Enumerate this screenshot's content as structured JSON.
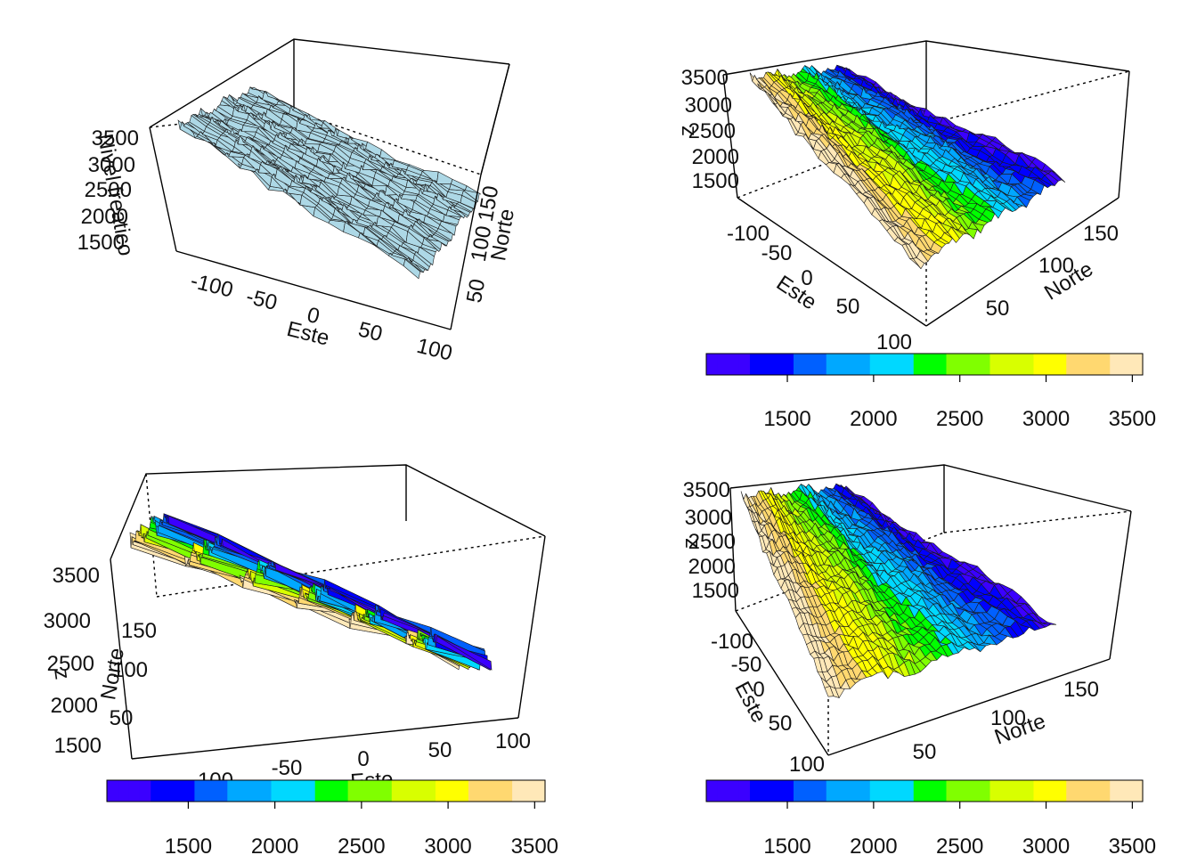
{
  "chart_data": [
    {
      "panel": "top-left",
      "type": "surface",
      "facet_color": "#add8e6",
      "xlabel": "Este",
      "ylabel": "Norte",
      "zlabel": "Nivel freatico",
      "xticks": [
        "-100",
        "-50",
        "0",
        "50",
        "100"
      ],
      "yticks": [
        "50",
        "100",
        "150"
      ],
      "zticks": [
        "1500",
        "2000",
        "2500",
        "3000",
        "3500"
      ],
      "xlim": [
        -130,
        110
      ],
      "ylim": [
        20,
        180
      ],
      "zlim": [
        1300,
        3600
      ],
      "colorbar": false
    },
    {
      "panel": "top-right",
      "type": "surface",
      "xlabel": "Este",
      "ylabel": "Norte",
      "zlabel": "z",
      "xticks": [
        "-100",
        "-50",
        "0",
        "50",
        "100"
      ],
      "yticks": [
        "50",
        "100",
        "150"
      ],
      "zticks": [
        "1500",
        "2000",
        "2500",
        "3000",
        "3500"
      ],
      "colorbar": true,
      "colorbar_ticks": [
        "1500",
        "2000",
        "2500",
        "3000",
        "3500"
      ],
      "colorbar_range": [
        1030,
        3560
      ]
    },
    {
      "panel": "bottom-left",
      "type": "surface",
      "xlabel": "Este",
      "ylabel": "Norte",
      "zlabel": "z",
      "xticks": [
        "-100",
        "-50",
        "0",
        "50",
        "100"
      ],
      "yticks": [
        "50",
        "100",
        "150"
      ],
      "zticks": [
        "1500",
        "2000",
        "2500",
        "3000",
        "3500"
      ],
      "colorbar": true,
      "colorbar_ticks": [
        "1500",
        "2000",
        "2500",
        "3000",
        "3500"
      ],
      "colorbar_range": [
        1030,
        3560
      ]
    },
    {
      "panel": "bottom-right",
      "type": "surface",
      "xlabel": "Este",
      "ylabel": "Norte",
      "zlabel": "z",
      "xticks": [
        "-100",
        "-50",
        "0",
        "50",
        "100"
      ],
      "yticks": [
        "50",
        "100",
        "150"
      ],
      "zticks": [
        "1500",
        "2000",
        "2500",
        "3000",
        "3500"
      ],
      "colorbar": true,
      "colorbar_ticks": [
        "1500",
        "2000",
        "2500",
        "3000",
        "3500"
      ],
      "colorbar_range": [
        1030,
        3560
      ]
    }
  ],
  "palette": [
    "#3b00ff",
    "#0000ff",
    "#0060ff",
    "#00a8ff",
    "#00d8ff",
    "#00ff00",
    "#80ff00",
    "#d8ff00",
    "#ffff00",
    "#ffd870",
    "#ffe8b8"
  ]
}
